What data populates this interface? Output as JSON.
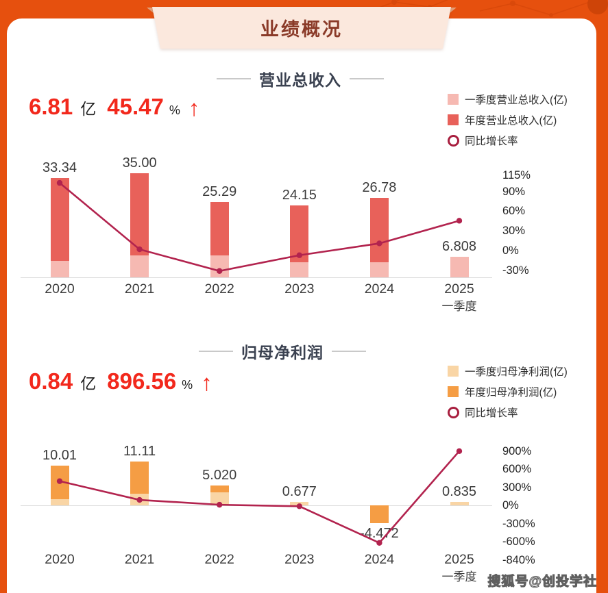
{
  "page": {
    "banner_title": "业绩概况",
    "watermark": "搜狐号@创投学社",
    "colors": {
      "background": "#E6500E",
      "card": "#FFFFFF",
      "banner_bg": "#FBE8DD",
      "banner_fold": "#E2A07A",
      "banner_text": "#8A3A28",
      "stat_red": "#F2281C",
      "growth_line": "#B2234E",
      "revenue_annual": "#E8615A",
      "revenue_q1": "#F6B9B2",
      "profit_annual": "#F59D44",
      "profit_q1": "#F9D5A5",
      "axis_line": "#DCDCDC"
    }
  },
  "chart_data": [
    {
      "type": "bar+line",
      "title": "营业总收入",
      "stat": {
        "value": "6.81",
        "unit": "亿",
        "growth": "45.47",
        "growth_unit": "%",
        "arrow": "↑"
      },
      "legend": [
        {
          "label": "一季度营业总收入(亿)",
          "swatch": "square",
          "color": "#F6B9B2"
        },
        {
          "label": "年度营业总收入(亿)",
          "swatch": "square",
          "color": "#E8615A"
        },
        {
          "label": "同比增长率",
          "swatch": "circle",
          "color": "#A81E3E"
        }
      ],
      "legend_position": "top-right",
      "grid": false,
      "categories": [
        "2020",
        "2021",
        "2022",
        "2023",
        "2024",
        "2025"
      ],
      "category_sub": [
        "",
        "",
        "",
        "",
        "",
        "一季度"
      ],
      "series": [
        {
          "name": "一季度营业总收入(亿)",
          "values": [
            5.5,
            7.4,
            7.4,
            5.0,
            5.1,
            6.808
          ],
          "color": "#F6B9B2"
        },
        {
          "name": "年度营业总收入(亿)",
          "values": [
            33.34,
            35.0,
            25.29,
            24.15,
            26.78,
            null
          ],
          "color": "#E8615A"
        },
        {
          "name": "同比增长率(%)",
          "values": [
            103,
            2,
            -31,
            -7,
            11,
            45.47
          ],
          "color": "#B2234E"
        }
      ],
      "bar_labels": [
        "33.34",
        "35.00",
        "25.29",
        "24.15",
        "26.78",
        "6.808"
      ],
      "right_axis": {
        "ticks": [
          115,
          90,
          60,
          30,
          0,
          -30
        ],
        "unit": "%"
      }
    },
    {
      "type": "bar+line",
      "title": "归母净利润",
      "stat": {
        "value": "0.84",
        "unit": "亿",
        "growth": "896.56",
        "growth_unit": "%",
        "arrow": "↑"
      },
      "legend": [
        {
          "label": "一季度归母净利润(亿)",
          "swatch": "square",
          "color": "#F9D5A5"
        },
        {
          "label": "年度归母净利润(亿)",
          "swatch": "square",
          "color": "#F59D44"
        },
        {
          "label": "同比增长率",
          "swatch": "circle",
          "color": "#A81E3E"
        }
      ],
      "legend_position": "top-right",
      "grid": false,
      "categories": [
        "2020",
        "2021",
        "2022",
        "2023",
        "2024",
        "2025"
      ],
      "category_sub": [
        "",
        "",
        "",
        "",
        "",
        "一季度"
      ],
      "series": [
        {
          "name": "一季度归母净利润(亿)",
          "values": [
            1.6,
            2.9,
            3.3,
            0.8,
            0.08,
            0.835
          ],
          "color": "#F9D5A5"
        },
        {
          "name": "年度归母净利润(亿)",
          "values": [
            10.01,
            11.11,
            5.02,
            0.677,
            -4.472,
            null
          ],
          "color": "#F59D44"
        },
        {
          "name": "同比增长率(%)",
          "values": [
            400,
            90,
            10,
            -15,
            -620,
            896.56
          ],
          "color": "#B2234E"
        }
      ],
      "bar_labels": [
        "10.01",
        "11.11",
        "5.020",
        "0.677",
        "-4.472",
        "0.835"
      ],
      "right_axis": {
        "ticks": [
          900,
          600,
          300,
          0,
          -300,
          -600,
          -840
        ],
        "unit": "%"
      }
    }
  ]
}
